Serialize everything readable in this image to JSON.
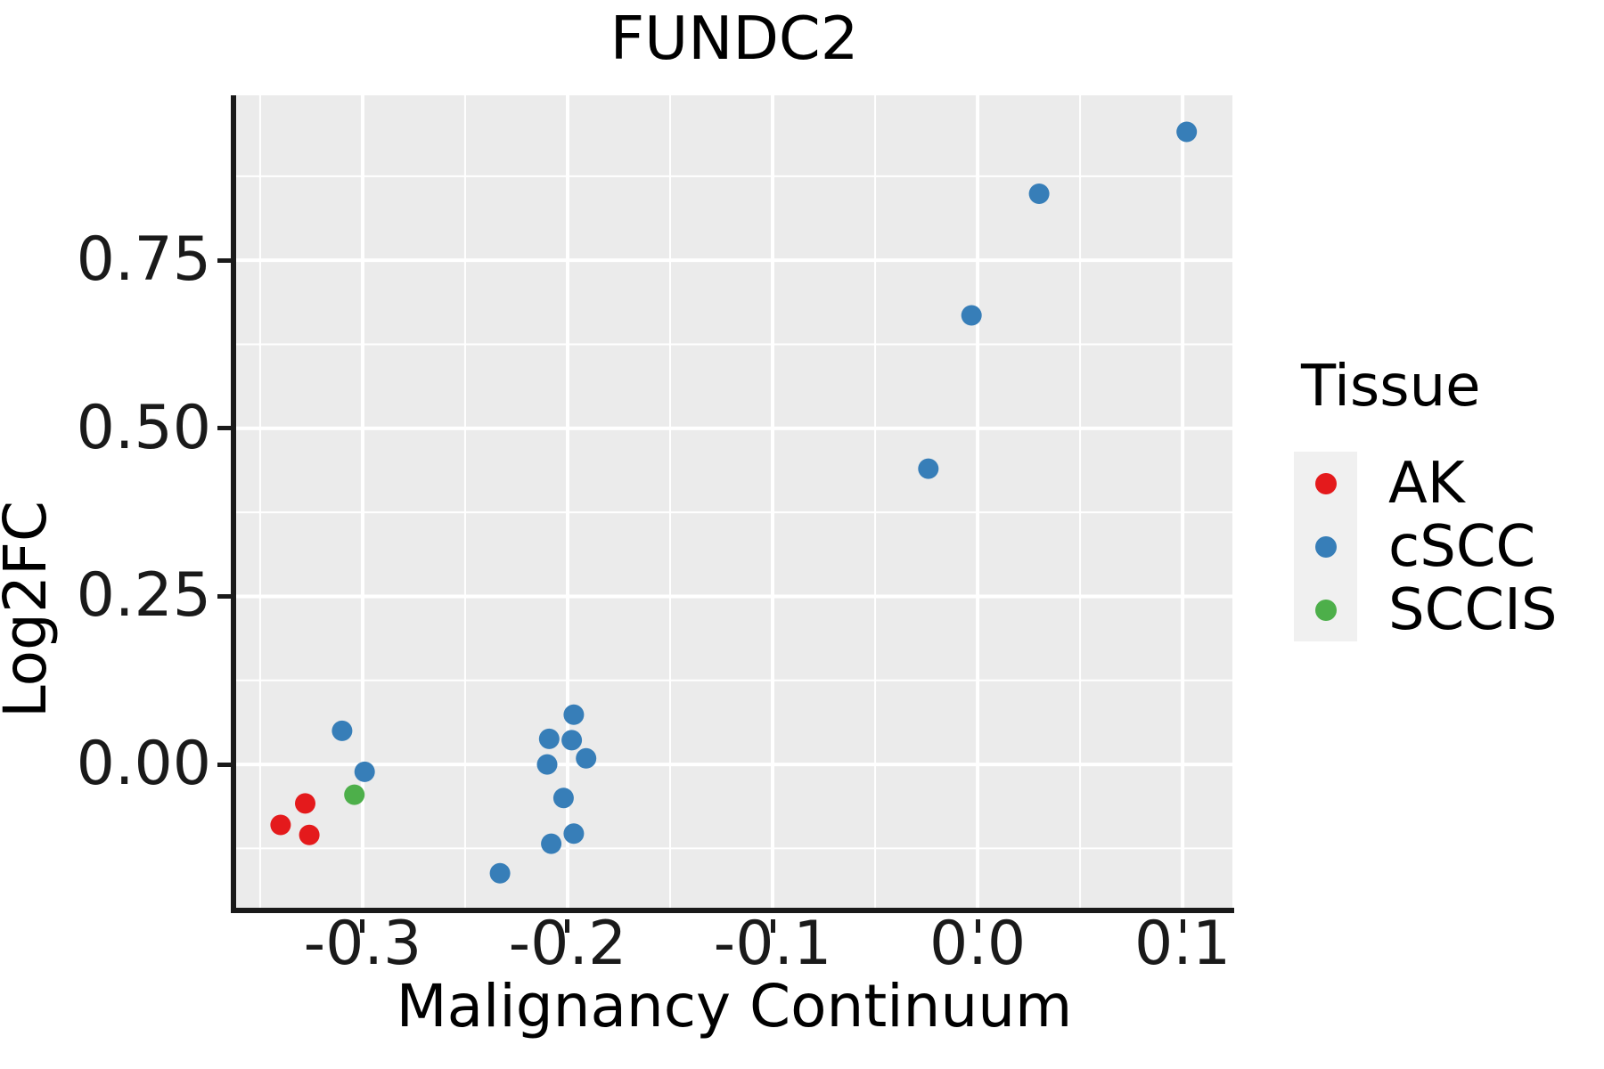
{
  "title": "FUNDC2",
  "axes": {
    "x": {
      "label": "Malignancy Continuum",
      "ticks": [
        -0.3,
        -0.2,
        -0.1,
        0.0,
        0.1
      ],
      "tick_labels": [
        "-0.3",
        "-0.2",
        "-0.1",
        "0.0",
        "0.1"
      ]
    },
    "y": {
      "label": "Log2FC",
      "ticks": [
        0.75,
        0.5,
        0.25,
        0.0
      ],
      "tick_labels": [
        "0.75",
        "0.50",
        "0.25",
        "0.00"
      ]
    }
  },
  "legend": {
    "title": "Tissue",
    "items": [
      {
        "label": "AK",
        "color": "#E41A1C"
      },
      {
        "label": "cSCC",
        "color": "#377EB8"
      },
      {
        "label": "SCCIS",
        "color": "#4DAF4A"
      }
    ]
  },
  "colors": {
    "panel_background": "#EBEBEB",
    "gridline": "#FFFFFF",
    "axis": "#1A1A1A",
    "legend_key_background": "#F0F0F0"
  },
  "chart_data": {
    "type": "scatter",
    "title": "FUNDC2",
    "xlabel": "Malignancy Continuum",
    "ylabel": "Log2FC",
    "xlim": [
      -0.3617,
      0.1243
    ],
    "ylim": [
      -0.2172,
      0.9954
    ],
    "grid": true,
    "legend_position": "right",
    "legend_title": "Tissue",
    "series": [
      {
        "name": "AK",
        "color": "#E41A1C",
        "points": [
          [
            -0.328,
            -0.058
          ],
          [
            -0.34,
            -0.09
          ],
          [
            -0.326,
            -0.105
          ]
        ]
      },
      {
        "name": "cSCC",
        "color": "#377EB8",
        "points": [
          [
            0.102,
            0.941
          ],
          [
            0.03,
            0.849
          ],
          [
            -0.003,
            0.668
          ],
          [
            -0.024,
            0.44
          ],
          [
            -0.31,
            0.05
          ],
          [
            -0.299,
            -0.011
          ],
          [
            -0.197,
            0.074
          ],
          [
            -0.209,
            0.038
          ],
          [
            -0.198,
            0.036
          ],
          [
            -0.191,
            0.009
          ],
          [
            -0.21,
            0.0
          ],
          [
            -0.202,
            -0.05
          ],
          [
            -0.197,
            -0.103
          ],
          [
            -0.208,
            -0.118
          ],
          [
            -0.233,
            -0.162
          ]
        ]
      },
      {
        "name": "SCCIS",
        "color": "#4DAF4A",
        "points": [
          [
            -0.304,
            -0.045
          ]
        ]
      }
    ]
  }
}
